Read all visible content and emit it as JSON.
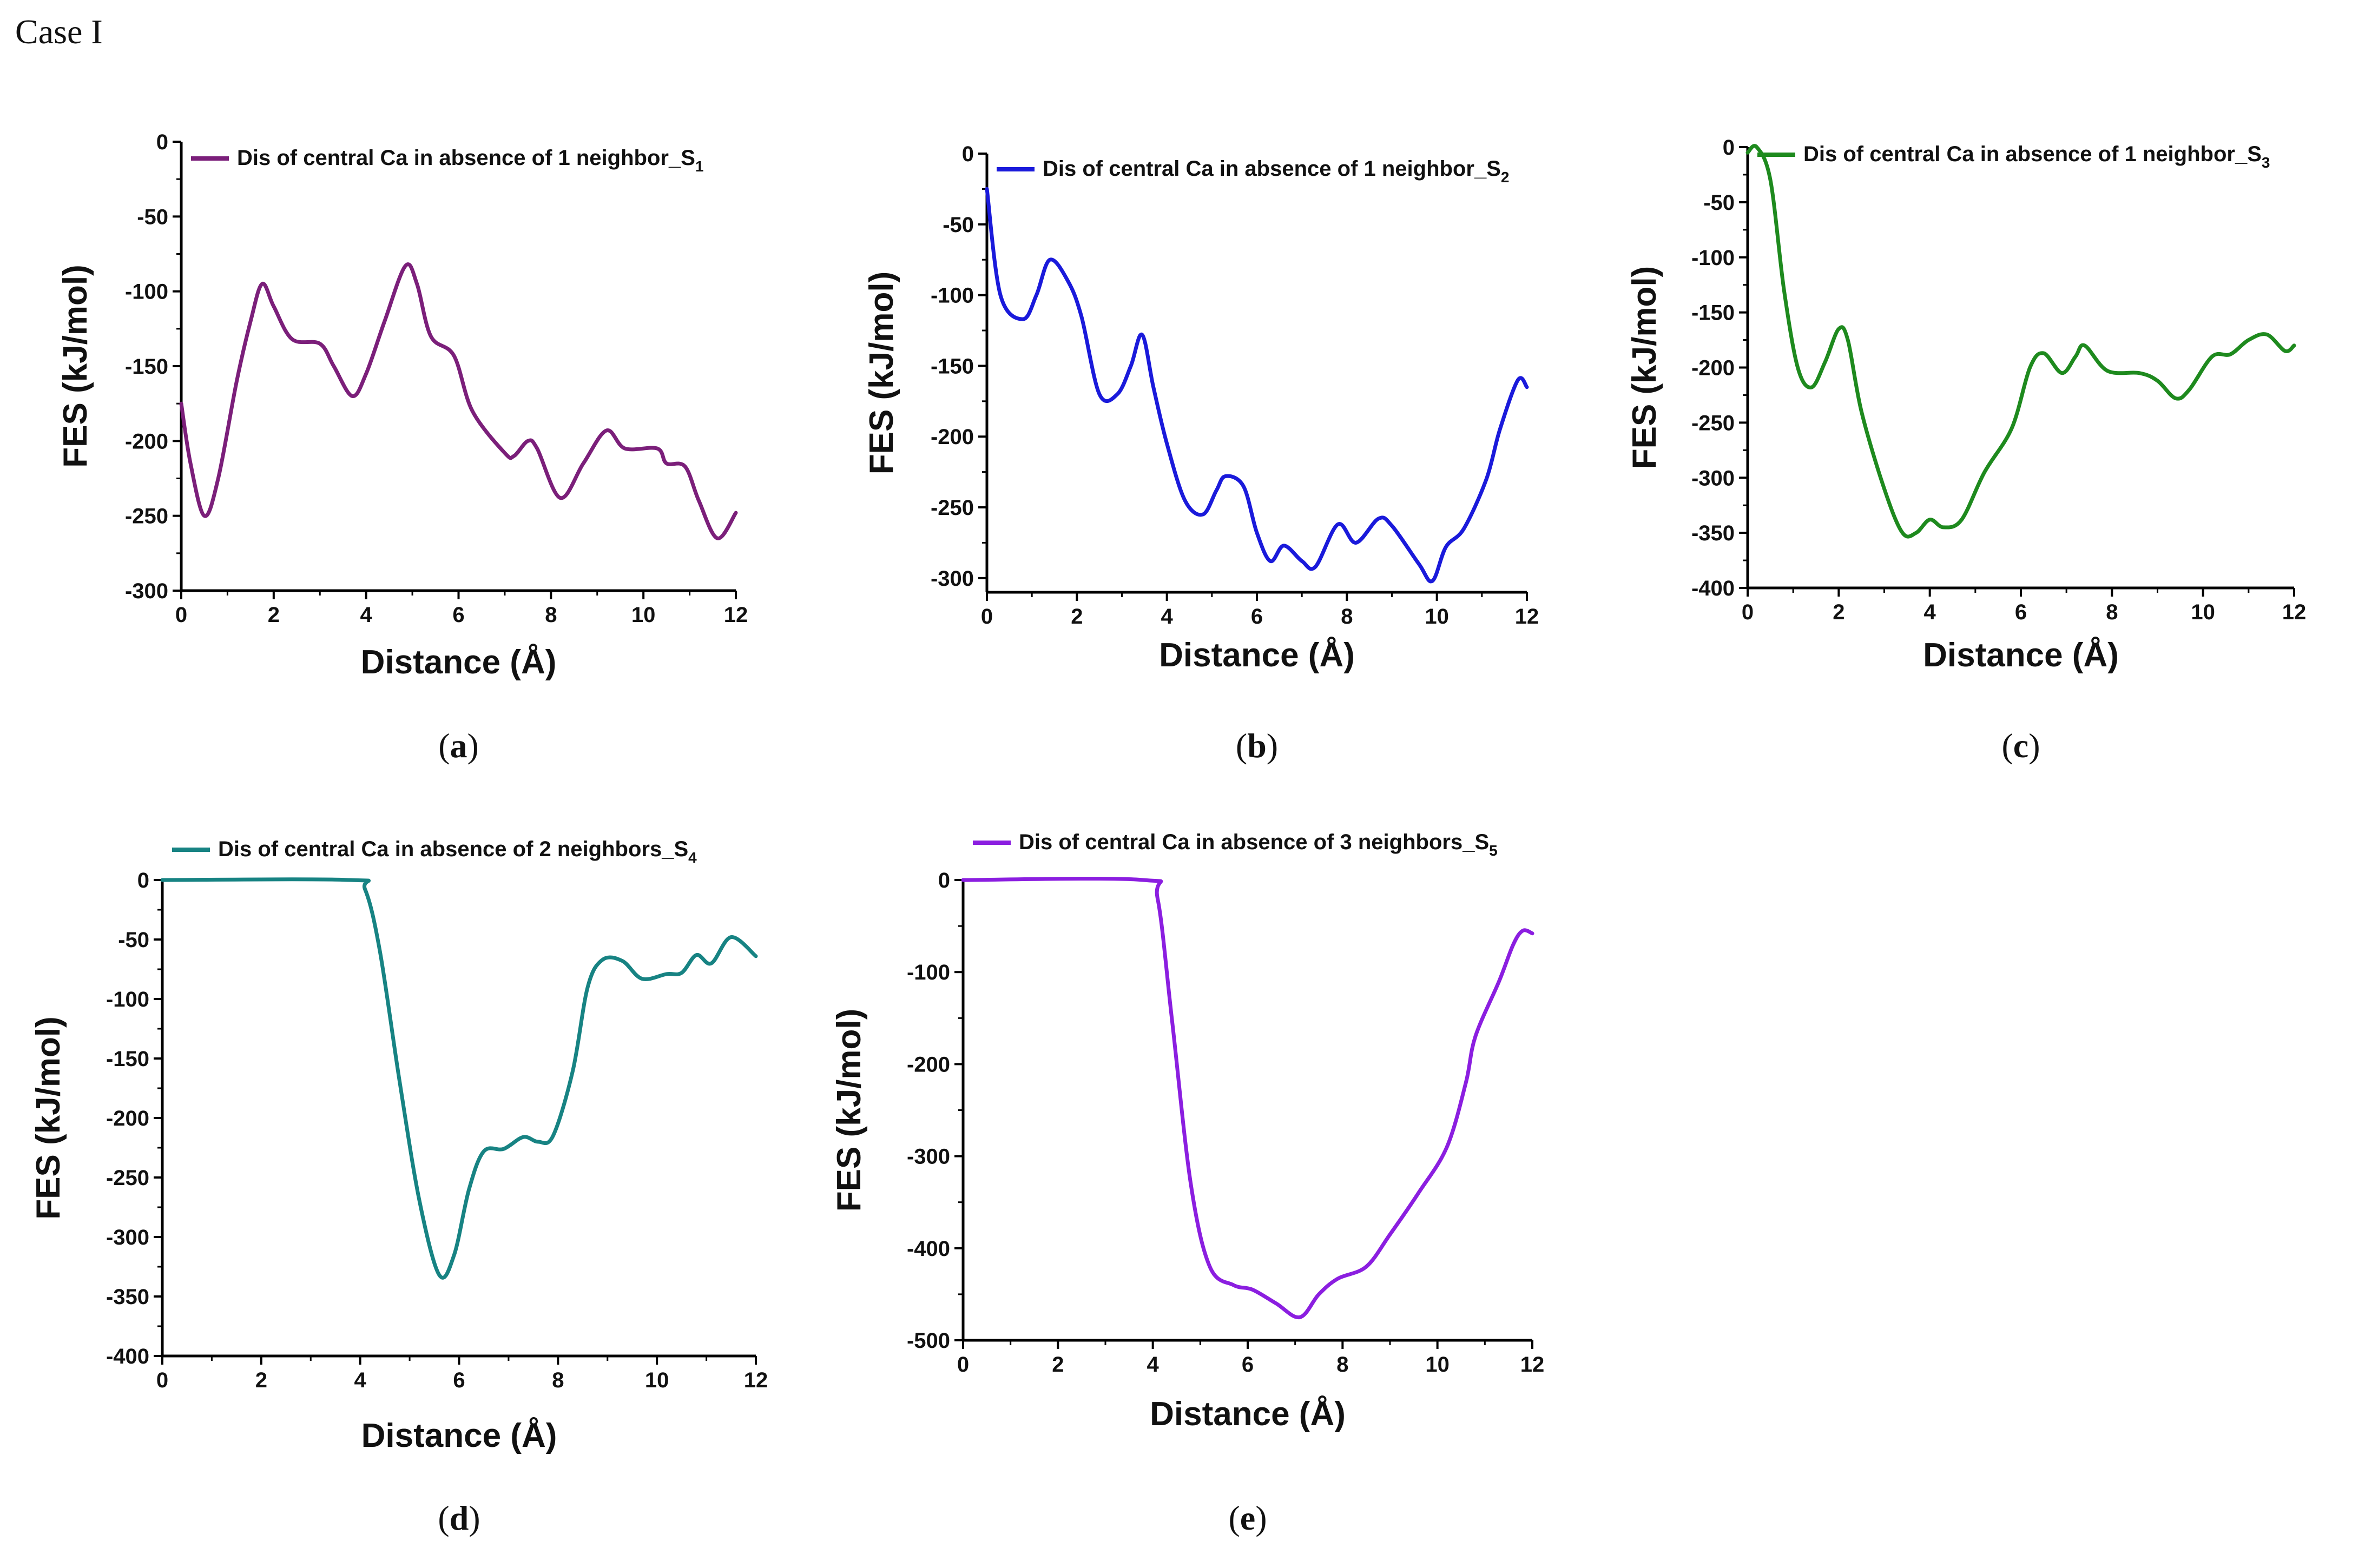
{
  "case_title": "Case I",
  "chart_data": [
    {
      "id": "a",
      "type": "line",
      "panel_label": "a",
      "color": "#7b1f7a",
      "legend": {
        "text": "Dis of central Ca in absence of 1 neighbor_S",
        "subscript": "1",
        "placement": "top-left"
      },
      "xlabel": "Distance (Å)",
      "ylabel": "FES (kJ/mol)",
      "xlim": [
        0,
        12
      ],
      "ylim": [
        -300,
        0
      ],
      "xticks": [
        0,
        2,
        4,
        6,
        8,
        10,
        12
      ],
      "yticks": [
        0,
        -50,
        -100,
        -150,
        -200,
        -250,
        -300
      ],
      "grid": false,
      "points": [
        [
          0,
          -175
        ],
        [
          0.2,
          -215
        ],
        [
          0.5,
          -250
        ],
        [
          0.8,
          -225
        ],
        [
          1.2,
          -160
        ],
        [
          1.5,
          -120
        ],
        [
          1.75,
          -95
        ],
        [
          2.0,
          -110
        ],
        [
          2.4,
          -132
        ],
        [
          3.0,
          -135
        ],
        [
          3.3,
          -150
        ],
        [
          3.7,
          -170
        ],
        [
          4.0,
          -155
        ],
        [
          4.4,
          -120
        ],
        [
          4.85,
          -83
        ],
        [
          5.1,
          -95
        ],
        [
          5.4,
          -130
        ],
        [
          5.9,
          -143
        ],
        [
          6.3,
          -180
        ],
        [
          7.0,
          -208
        ],
        [
          7.2,
          -210
        ],
        [
          7.5,
          -200
        ],
        [
          7.7,
          -205
        ],
        [
          8.2,
          -238
        ],
        [
          8.7,
          -215
        ],
        [
          9.2,
          -193
        ],
        [
          9.6,
          -205
        ],
        [
          10.3,
          -205
        ],
        [
          10.5,
          -215
        ],
        [
          10.9,
          -217
        ],
        [
          11.2,
          -240
        ],
        [
          11.6,
          -265
        ],
        [
          12.0,
          -248
        ]
      ]
    },
    {
      "id": "b",
      "type": "line",
      "panel_label": "b",
      "color": "#1a1adb",
      "legend": {
        "text": "Dis of central Ca in absence of 1 neighbor_S",
        "subscript": "2",
        "placement": "top-left"
      },
      "xlabel": "Distance (Å)",
      "ylabel": "FES (kJ/mol)",
      "xlim": [
        0,
        12
      ],
      "ylim": [
        -310,
        0
      ],
      "xticks": [
        0,
        2,
        4,
        6,
        8,
        10,
        12
      ],
      "yticks": [
        0,
        -50,
        -100,
        -150,
        -200,
        -250,
        -300
      ],
      "grid": false,
      "points": [
        [
          0,
          -25
        ],
        [
          0.3,
          -100
        ],
        [
          0.8,
          -117
        ],
        [
          1.1,
          -100
        ],
        [
          1.4,
          -75
        ],
        [
          1.8,
          -90
        ],
        [
          2.1,
          -115
        ],
        [
          2.5,
          -170
        ],
        [
          2.9,
          -170
        ],
        [
          3.2,
          -150
        ],
        [
          3.45,
          -128
        ],
        [
          3.7,
          -165
        ],
        [
          4.0,
          -205
        ],
        [
          4.4,
          -245
        ],
        [
          4.8,
          -255
        ],
        [
          5.1,
          -238
        ],
        [
          5.3,
          -228
        ],
        [
          5.7,
          -235
        ],
        [
          6.0,
          -268
        ],
        [
          6.3,
          -288
        ],
        [
          6.6,
          -277
        ],
        [
          7.0,
          -288
        ],
        [
          7.3,
          -292
        ],
        [
          7.8,
          -262
        ],
        [
          8.2,
          -275
        ],
        [
          8.7,
          -258
        ],
        [
          9.0,
          -263
        ],
        [
          9.6,
          -290
        ],
        [
          9.9,
          -302
        ],
        [
          10.2,
          -278
        ],
        [
          10.6,
          -265
        ],
        [
          11.1,
          -230
        ],
        [
          11.4,
          -195
        ],
        [
          11.8,
          -160
        ],
        [
          12.0,
          -165
        ]
      ]
    },
    {
      "id": "c",
      "type": "line",
      "panel_label": "c",
      "color": "#1e8a1e",
      "legend": {
        "text": "Dis of central Ca in absence of 1 neighbor_S",
        "subscript": "3",
        "placement": "top-left"
      },
      "xlabel": "Distance (Å)",
      "ylabel": "FES (kJ/mol)",
      "xlim": [
        0,
        12
      ],
      "ylim": [
        -400,
        0
      ],
      "xticks": [
        0,
        2,
        4,
        6,
        8,
        10,
        12
      ],
      "yticks": [
        0,
        -50,
        -100,
        -150,
        -200,
        -250,
        -300,
        -350,
        -400
      ],
      "grid": false,
      "points": [
        [
          0,
          -5
        ],
        [
          0.2,
          0
        ],
        [
          0.5,
          -30
        ],
        [
          0.8,
          -130
        ],
        [
          1.1,
          -200
        ],
        [
          1.4,
          -218
        ],
        [
          1.7,
          -195
        ],
        [
          2.0,
          -165
        ],
        [
          2.2,
          -175
        ],
        [
          2.5,
          -240
        ],
        [
          3.0,
          -310
        ],
        [
          3.4,
          -350
        ],
        [
          3.7,
          -350
        ],
        [
          4.0,
          -338
        ],
        [
          4.3,
          -345
        ],
        [
          4.7,
          -338
        ],
        [
          5.2,
          -295
        ],
        [
          5.8,
          -255
        ],
        [
          6.2,
          -200
        ],
        [
          6.5,
          -187
        ],
        [
          6.9,
          -205
        ],
        [
          7.2,
          -190
        ],
        [
          7.4,
          -180
        ],
        [
          7.9,
          -203
        ],
        [
          8.6,
          -205
        ],
        [
          9.0,
          -212
        ],
        [
          9.4,
          -228
        ],
        [
          9.7,
          -220
        ],
        [
          10.2,
          -190
        ],
        [
          10.6,
          -188
        ],
        [
          11.0,
          -175
        ],
        [
          11.4,
          -170
        ],
        [
          11.8,
          -185
        ],
        [
          12.0,
          -180
        ]
      ]
    },
    {
      "id": "d",
      "type": "line",
      "panel_label": "d",
      "color": "#178383",
      "legend": {
        "text": "Dis of central Ca in absence of 2 neighbors_S",
        "subscript": "4",
        "placement": "top-left"
      },
      "xlabel": "Distance (Å)",
      "ylabel": "FES (kJ/mol)",
      "xlim": [
        0,
        12
      ],
      "ylim": [
        -400,
        0
      ],
      "xticks": [
        0,
        2,
        4,
        6,
        8,
        10,
        12
      ],
      "yticks": [
        0,
        -50,
        -100,
        -150,
        -200,
        -250,
        -300,
        -350,
        -400
      ],
      "grid": false,
      "points": [
        [
          0,
          0
        ],
        [
          3.8,
          0
        ],
        [
          4.1,
          -8
        ],
        [
          4.4,
          -60
        ],
        [
          4.8,
          -170
        ],
        [
          5.2,
          -270
        ],
        [
          5.6,
          -332
        ],
        [
          5.9,
          -315
        ],
        [
          6.2,
          -260
        ],
        [
          6.5,
          -228
        ],
        [
          6.9,
          -226
        ],
        [
          7.3,
          -216
        ],
        [
          7.6,
          -220
        ],
        [
          7.9,
          -215
        ],
        [
          8.3,
          -160
        ],
        [
          8.6,
          -90
        ],
        [
          8.9,
          -67
        ],
        [
          9.3,
          -68
        ],
        [
          9.7,
          -83
        ],
        [
          10.2,
          -79
        ],
        [
          10.5,
          -78
        ],
        [
          10.8,
          -63
        ],
        [
          11.1,
          -70
        ],
        [
          11.5,
          -48
        ],
        [
          12.0,
          -64
        ]
      ]
    },
    {
      "id": "e",
      "type": "line",
      "panel_label": "e",
      "color": "#8b1ee0",
      "legend": {
        "text": "Dis of central Ca in absence of 3 neighbors_S",
        "subscript": "5",
        "placement": "top-left"
      },
      "xlabel": "Distance (Å)",
      "ylabel": "FES (kJ/mol)",
      "xlim": [
        0,
        12
      ],
      "ylim": [
        -500,
        0
      ],
      "xticks": [
        0,
        2,
        4,
        6,
        8,
        10,
        12
      ],
      "yticks": [
        0,
        -100,
        -200,
        -300,
        -400,
        -500
      ],
      "grid": false,
      "points": [
        [
          0,
          0
        ],
        [
          3.8,
          0
        ],
        [
          4.1,
          -20
        ],
        [
          4.4,
          -150
        ],
        [
          4.8,
          -330
        ],
        [
          5.2,
          -420
        ],
        [
          5.7,
          -440
        ],
        [
          6.1,
          -445
        ],
        [
          6.6,
          -460
        ],
        [
          7.1,
          -475
        ],
        [
          7.5,
          -450
        ],
        [
          7.9,
          -433
        ],
        [
          8.5,
          -420
        ],
        [
          9.0,
          -385
        ],
        [
          9.6,
          -340
        ],
        [
          10.2,
          -290
        ],
        [
          10.6,
          -220
        ],
        [
          10.8,
          -170
        ],
        [
          11.3,
          -110
        ],
        [
          11.6,
          -70
        ],
        [
          11.8,
          -55
        ],
        [
          12.0,
          -58
        ]
      ]
    }
  ]
}
